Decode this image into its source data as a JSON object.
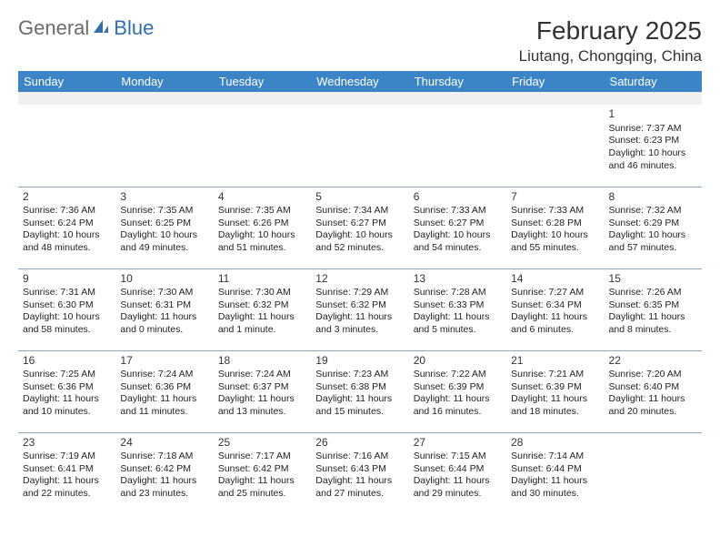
{
  "logo": {
    "part1": "General",
    "part2": "Blue"
  },
  "title": "February 2025",
  "location": "Liutang, Chongqing, China",
  "colors": {
    "header_bg": "#3b85c6",
    "header_text": "#ffffff",
    "row_border": "#8ca8c2",
    "blank_bg": "#f0f0f0",
    "logo_gray": "#6b6b6b",
    "logo_blue": "#2f6fb0"
  },
  "fonts": {
    "title_size": 28,
    "location_size": 17,
    "header_size": 13,
    "cell_size": 10.5,
    "daynum_size": 12
  },
  "weekdays": [
    "Sunday",
    "Monday",
    "Tuesday",
    "Wednesday",
    "Thursday",
    "Friday",
    "Saturday"
  ],
  "weeks": [
    [
      null,
      null,
      null,
      null,
      null,
      null,
      {
        "n": "1",
        "sr": "7:37 AM",
        "ss": "6:23 PM",
        "dl": "10 hours and 46 minutes."
      }
    ],
    [
      {
        "n": "2",
        "sr": "7:36 AM",
        "ss": "6:24 PM",
        "dl": "10 hours and 48 minutes."
      },
      {
        "n": "3",
        "sr": "7:35 AM",
        "ss": "6:25 PM",
        "dl": "10 hours and 49 minutes."
      },
      {
        "n": "4",
        "sr": "7:35 AM",
        "ss": "6:26 PM",
        "dl": "10 hours and 51 minutes."
      },
      {
        "n": "5",
        "sr": "7:34 AM",
        "ss": "6:27 PM",
        "dl": "10 hours and 52 minutes."
      },
      {
        "n": "6",
        "sr": "7:33 AM",
        "ss": "6:27 PM",
        "dl": "10 hours and 54 minutes."
      },
      {
        "n": "7",
        "sr": "7:33 AM",
        "ss": "6:28 PM",
        "dl": "10 hours and 55 minutes."
      },
      {
        "n": "8",
        "sr": "7:32 AM",
        "ss": "6:29 PM",
        "dl": "10 hours and 57 minutes."
      }
    ],
    [
      {
        "n": "9",
        "sr": "7:31 AM",
        "ss": "6:30 PM",
        "dl": "10 hours and 58 minutes."
      },
      {
        "n": "10",
        "sr": "7:30 AM",
        "ss": "6:31 PM",
        "dl": "11 hours and 0 minutes."
      },
      {
        "n": "11",
        "sr": "7:30 AM",
        "ss": "6:32 PM",
        "dl": "11 hours and 1 minute."
      },
      {
        "n": "12",
        "sr": "7:29 AM",
        "ss": "6:32 PM",
        "dl": "11 hours and 3 minutes."
      },
      {
        "n": "13",
        "sr": "7:28 AM",
        "ss": "6:33 PM",
        "dl": "11 hours and 5 minutes."
      },
      {
        "n": "14",
        "sr": "7:27 AM",
        "ss": "6:34 PM",
        "dl": "11 hours and 6 minutes."
      },
      {
        "n": "15",
        "sr": "7:26 AM",
        "ss": "6:35 PM",
        "dl": "11 hours and 8 minutes."
      }
    ],
    [
      {
        "n": "16",
        "sr": "7:25 AM",
        "ss": "6:36 PM",
        "dl": "11 hours and 10 minutes."
      },
      {
        "n": "17",
        "sr": "7:24 AM",
        "ss": "6:36 PM",
        "dl": "11 hours and 11 minutes."
      },
      {
        "n": "18",
        "sr": "7:24 AM",
        "ss": "6:37 PM",
        "dl": "11 hours and 13 minutes."
      },
      {
        "n": "19",
        "sr": "7:23 AM",
        "ss": "6:38 PM",
        "dl": "11 hours and 15 minutes."
      },
      {
        "n": "20",
        "sr": "7:22 AM",
        "ss": "6:39 PM",
        "dl": "11 hours and 16 minutes."
      },
      {
        "n": "21",
        "sr": "7:21 AM",
        "ss": "6:39 PM",
        "dl": "11 hours and 18 minutes."
      },
      {
        "n": "22",
        "sr": "7:20 AM",
        "ss": "6:40 PM",
        "dl": "11 hours and 20 minutes."
      }
    ],
    [
      {
        "n": "23",
        "sr": "7:19 AM",
        "ss": "6:41 PM",
        "dl": "11 hours and 22 minutes."
      },
      {
        "n": "24",
        "sr": "7:18 AM",
        "ss": "6:42 PM",
        "dl": "11 hours and 23 minutes."
      },
      {
        "n": "25",
        "sr": "7:17 AM",
        "ss": "6:42 PM",
        "dl": "11 hours and 25 minutes."
      },
      {
        "n": "26",
        "sr": "7:16 AM",
        "ss": "6:43 PM",
        "dl": "11 hours and 27 minutes."
      },
      {
        "n": "27",
        "sr": "7:15 AM",
        "ss": "6:44 PM",
        "dl": "11 hours and 29 minutes."
      },
      {
        "n": "28",
        "sr": "7:14 AM",
        "ss": "6:44 PM",
        "dl": "11 hours and 30 minutes."
      },
      null
    ]
  ]
}
